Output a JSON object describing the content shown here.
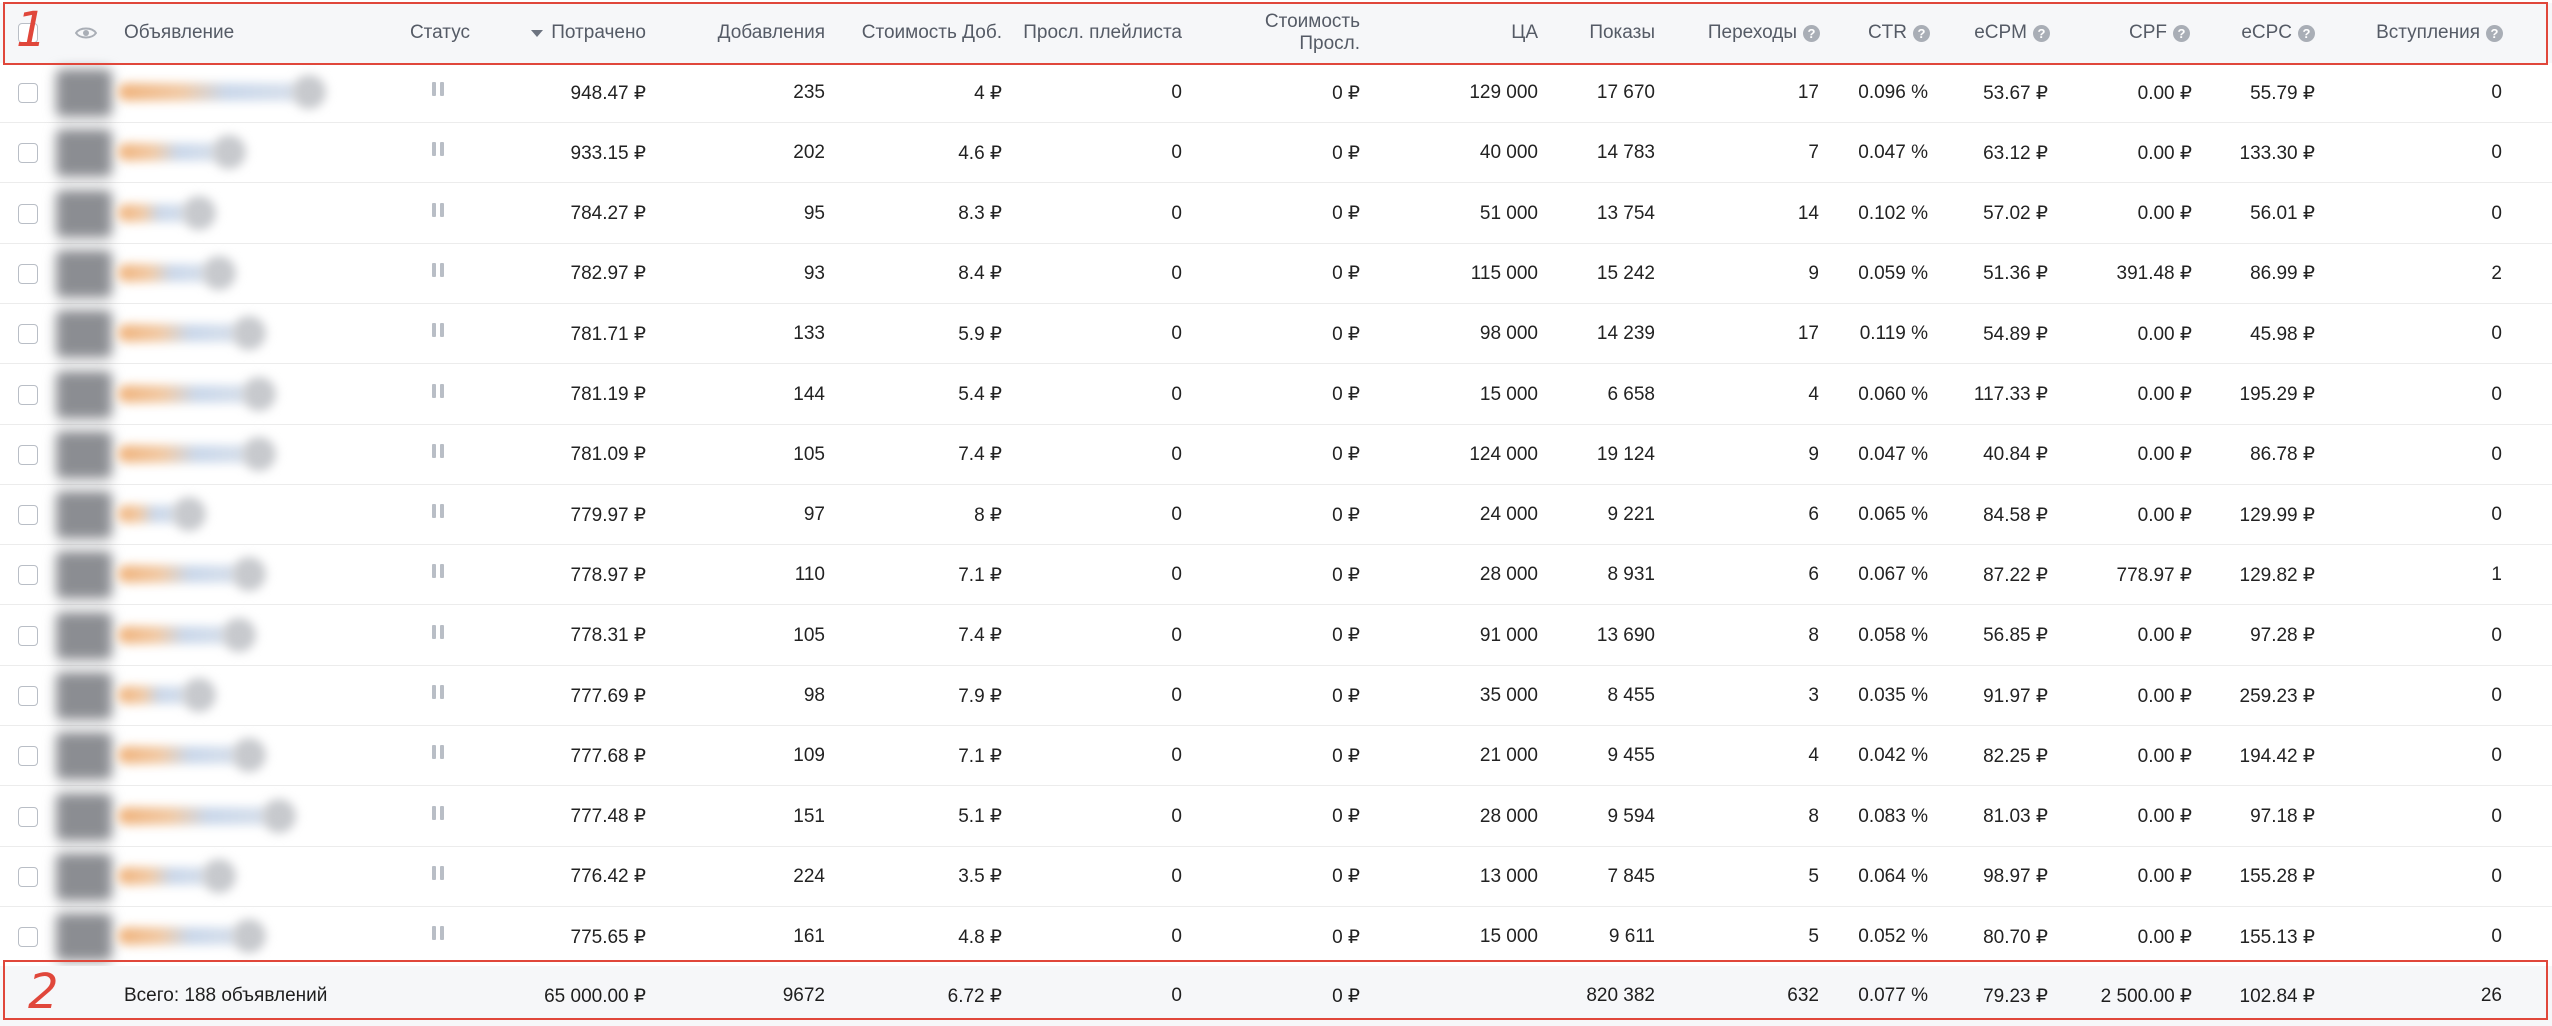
{
  "header": {
    "columns": [
      {
        "key": "ad",
        "label": "Объявление"
      },
      {
        "key": "status",
        "label": "Статус"
      },
      {
        "key": "spent",
        "label": "Потрачено"
      },
      {
        "key": "adds",
        "label": "Добавления"
      },
      {
        "key": "cost_add",
        "label": "Стоимость Доб."
      },
      {
        "key": "playlist_listens",
        "label": "Просл. плейлиста"
      },
      {
        "key": "cost_listen",
        "label": "Стоимость Просл."
      },
      {
        "key": "ca",
        "label": "ЦА"
      },
      {
        "key": "impressions",
        "label": "Показы"
      },
      {
        "key": "clicks",
        "label": "Переходы"
      },
      {
        "key": "ctr",
        "label": "CTR"
      },
      {
        "key": "ecpm",
        "label": "eCPM"
      },
      {
        "key": "cpf",
        "label": "CPF"
      },
      {
        "key": "ecpc",
        "label": "eCPC"
      },
      {
        "key": "joins",
        "label": "Вступления"
      }
    ],
    "cost_listen_line1": "Стоимость",
    "cost_listen_line2": "Просл.",
    "sort_column": "spent",
    "help_icon_glyph": "?",
    "help_columns": [
      "clicks",
      "ctr",
      "ecpm",
      "cpf",
      "ecpc",
      "joins"
    ]
  },
  "rows": [
    {
      "spent": "948.47 ₽",
      "adds": "235",
      "cost_add": "4 ₽",
      "playlist_listens": "0",
      "cost_listen": "0 ₽",
      "ca": "129 000",
      "impressions": "17 670",
      "clicks": "17",
      "ctr": "0.096 %",
      "ecpm": "53.67 ₽",
      "cpf": "0.00 ₽",
      "ecpc": "55.79 ₽",
      "joins": "0"
    },
    {
      "spent": "933.15 ₽",
      "adds": "202",
      "cost_add": "4.6 ₽",
      "playlist_listens": "0",
      "cost_listen": "0 ₽",
      "ca": "40 000",
      "impressions": "14 783",
      "clicks": "7",
      "ctr": "0.047 %",
      "ecpm": "63.12 ₽",
      "cpf": "0.00 ₽",
      "ecpc": "133.30 ₽",
      "joins": "0"
    },
    {
      "spent": "784.27 ₽",
      "adds": "95",
      "cost_add": "8.3 ₽",
      "playlist_listens": "0",
      "cost_listen": "0 ₽",
      "ca": "51 000",
      "impressions": "13 754",
      "clicks": "14",
      "ctr": "0.102 %",
      "ecpm": "57.02 ₽",
      "cpf": "0.00 ₽",
      "ecpc": "56.01 ₽",
      "joins": "0"
    },
    {
      "spent": "782.97 ₽",
      "adds": "93",
      "cost_add": "8.4 ₽",
      "playlist_listens": "0",
      "cost_listen": "0 ₽",
      "ca": "115 000",
      "impressions": "15 242",
      "clicks": "9",
      "ctr": "0.059 %",
      "ecpm": "51.36 ₽",
      "cpf": "391.48 ₽",
      "ecpc": "86.99 ₽",
      "joins": "2"
    },
    {
      "spent": "781.71 ₽",
      "adds": "133",
      "cost_add": "5.9 ₽",
      "playlist_listens": "0",
      "cost_listen": "0 ₽",
      "ca": "98 000",
      "impressions": "14 239",
      "clicks": "17",
      "ctr": "0.119 %",
      "ecpm": "54.89 ₽",
      "cpf": "0.00 ₽",
      "ecpc": "45.98 ₽",
      "joins": "0"
    },
    {
      "spent": "781.19 ₽",
      "adds": "144",
      "cost_add": "5.4 ₽",
      "playlist_listens": "0",
      "cost_listen": "0 ₽",
      "ca": "15 000",
      "impressions": "6 658",
      "clicks": "4",
      "ctr": "0.060 %",
      "ecpm": "117.33 ₽",
      "cpf": "0.00 ₽",
      "ecpc": "195.29 ₽",
      "joins": "0"
    },
    {
      "spent": "781.09 ₽",
      "adds": "105",
      "cost_add": "7.4 ₽",
      "playlist_listens": "0",
      "cost_listen": "0 ₽",
      "ca": "124 000",
      "impressions": "19 124",
      "clicks": "9",
      "ctr": "0.047 %",
      "ecpm": "40.84 ₽",
      "cpf": "0.00 ₽",
      "ecpc": "86.78 ₽",
      "joins": "0"
    },
    {
      "spent": "779.97 ₽",
      "adds": "97",
      "cost_add": "8 ₽",
      "playlist_listens": "0",
      "cost_listen": "0 ₽",
      "ca": "24 000",
      "impressions": "9 221",
      "clicks": "6",
      "ctr": "0.065 %",
      "ecpm": "84.58 ₽",
      "cpf": "0.00 ₽",
      "ecpc": "129.99 ₽",
      "joins": "0"
    },
    {
      "spent": "778.97 ₽",
      "adds": "110",
      "cost_add": "7.1 ₽",
      "playlist_listens": "0",
      "cost_listen": "0 ₽",
      "ca": "28 000",
      "impressions": "8 931",
      "clicks": "6",
      "ctr": "0.067 %",
      "ecpm": "87.22 ₽",
      "cpf": "778.97 ₽",
      "ecpc": "129.82 ₽",
      "joins": "1"
    },
    {
      "spent": "778.31 ₽",
      "adds": "105",
      "cost_add": "7.4 ₽",
      "playlist_listens": "0",
      "cost_listen": "0 ₽",
      "ca": "91 000",
      "impressions": "13 690",
      "clicks": "8",
      "ctr": "0.058 %",
      "ecpm": "56.85 ₽",
      "cpf": "0.00 ₽",
      "ecpc": "97.28 ₽",
      "joins": "0"
    },
    {
      "spent": "777.69 ₽",
      "adds": "98",
      "cost_add": "7.9 ₽",
      "playlist_listens": "0",
      "cost_listen": "0 ₽",
      "ca": "35 000",
      "impressions": "8 455",
      "clicks": "3",
      "ctr": "0.035 %",
      "ecpm": "91.97 ₽",
      "cpf": "0.00 ₽",
      "ecpc": "259.23 ₽",
      "joins": "0"
    },
    {
      "spent": "777.68 ₽",
      "adds": "109",
      "cost_add": "7.1 ₽",
      "playlist_listens": "0",
      "cost_listen": "0 ₽",
      "ca": "21 000",
      "impressions": "9 455",
      "clicks": "4",
      "ctr": "0.042 %",
      "ecpm": "82.25 ₽",
      "cpf": "0.00 ₽",
      "ecpc": "194.42 ₽",
      "joins": "0"
    },
    {
      "spent": "777.48 ₽",
      "adds": "151",
      "cost_add": "5.1 ₽",
      "playlist_listens": "0",
      "cost_listen": "0 ₽",
      "ca": "28 000",
      "impressions": "9 594",
      "clicks": "8",
      "ctr": "0.083 %",
      "ecpm": "81.03 ₽",
      "cpf": "0.00 ₽",
      "ecpc": "97.18 ₽",
      "joins": "0"
    },
    {
      "spent": "776.42 ₽",
      "adds": "224",
      "cost_add": "3.5 ₽",
      "playlist_listens": "0",
      "cost_listen": "0 ₽",
      "ca": "13 000",
      "impressions": "7 845",
      "clicks": "5",
      "ctr": "0.064 %",
      "ecpm": "98.97 ₽",
      "cpf": "0.00 ₽",
      "ecpc": "155.28 ₽",
      "joins": "0"
    },
    {
      "spent": "775.65 ₽",
      "adds": "161",
      "cost_add": "4.8 ₽",
      "playlist_listens": "0",
      "cost_listen": "0 ₽",
      "ca": "15 000",
      "impressions": "9 611",
      "clicks": "5",
      "ctr": "0.052 %",
      "ecpm": "80.70 ₽",
      "cpf": "0.00 ₽",
      "ecpc": "155.13 ₽",
      "joins": "0"
    }
  ],
  "total": {
    "label": "Всего: 188 объявлений",
    "spent": "65 000.00 ₽",
    "adds": "9672",
    "cost_add": "6.72 ₽",
    "playlist_listens": "0",
    "cost_listen": "0 ₽",
    "ca": "",
    "impressions": "820 382",
    "clicks": "632",
    "ctr": "0.077 %",
    "ecpm": "79.23 ₽",
    "cpf": "2 500.00 ₽",
    "ecpc": "102.84 ₽",
    "joins": "26"
  },
  "annotations": [
    {
      "label": "1",
      "color": "#e0473b"
    },
    {
      "label": "2",
      "color": "#e0473b"
    }
  ],
  "icons": {
    "select_all": "checkbox-icon",
    "visibility": "eye-icon",
    "sort": "sort-desc-icon",
    "status": "pause-icon",
    "help": "question-icon"
  }
}
